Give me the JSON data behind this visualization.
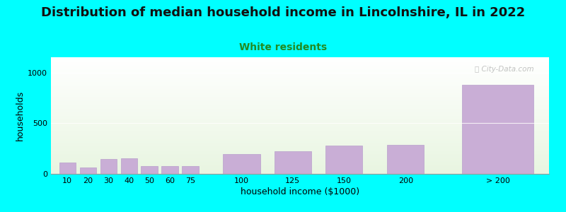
{
  "title": "Distribution of median household income in Lincolnshire, IL in 2022",
  "subtitle": "White residents",
  "xlabel": "household income ($1000)",
  "ylabel": "households",
  "categories": [
    "10",
    "20",
    "30",
    "40",
    "50",
    "60",
    "75",
    "100",
    "125",
    "150",
    "200",
    "> 200"
  ],
  "values": [
    110,
    65,
    145,
    155,
    80,
    78,
    75,
    195,
    220,
    280,
    285,
    880
  ],
  "bar_color": "#c9aed6",
  "bar_edge_color": "#b8a0cc",
  "background_outer": "#00ffff",
  "title_fontsize": 13,
  "subtitle_fontsize": 10,
  "subtitle_color": "#228B22",
  "axis_label_fontsize": 9,
  "tick_fontsize": 8,
  "ylim": [
    0,
    1150
  ],
  "yticks": [
    0,
    500,
    1000
  ],
  "watermark": "ⓘ City-Data.com"
}
